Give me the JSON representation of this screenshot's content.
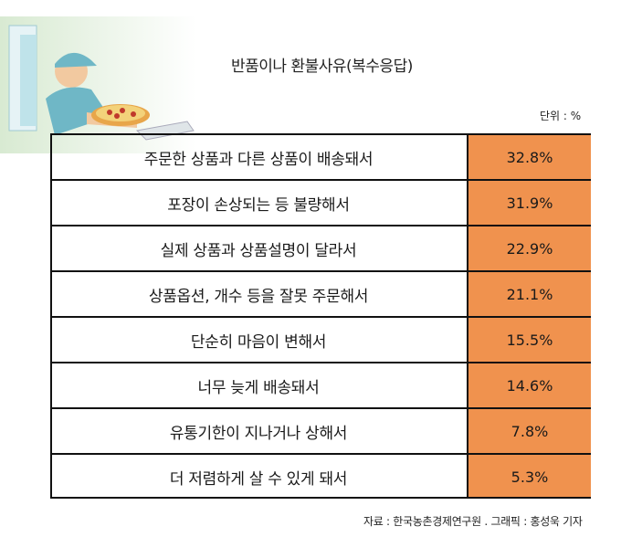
{
  "header": {
    "title": "반품이나 환불사유(복수응답)",
    "unit": "단위 : %"
  },
  "chart_data": {
    "type": "table",
    "title": "반품이나 환불사유(복수응답)",
    "unit": "%",
    "categories": [
      "주문한 상품과 다른 상품이 배송돼서",
      "포장이 손상되는 등 불량해서",
      "실제 상품과 상품설명이 달라서",
      "상품옵션, 개수 등을 잘못 주문해서",
      "단순히 마음이 변해서",
      "너무 늦게 배송돼서",
      "유통기한이 지나거나 상해서",
      "더 저렴하게 살 수 있게 돼서"
    ],
    "values": [
      32.8,
      31.9,
      22.9,
      21.1,
      15.5,
      14.6,
      7.8,
      5.3
    ],
    "value_labels": [
      "32.8%",
      "31.9%",
      "22.9%",
      "21.1%",
      "15.5%",
      "14.6%",
      "7.8%",
      "5.3%"
    ],
    "value_color": "#f0924e"
  },
  "footer": {
    "source": "자료 : 한국농촌경제연구원 . 그래픽 : 홍성욱 기자"
  },
  "illustration": {
    "icon": "delivery-person-with-pizza-illustration"
  }
}
